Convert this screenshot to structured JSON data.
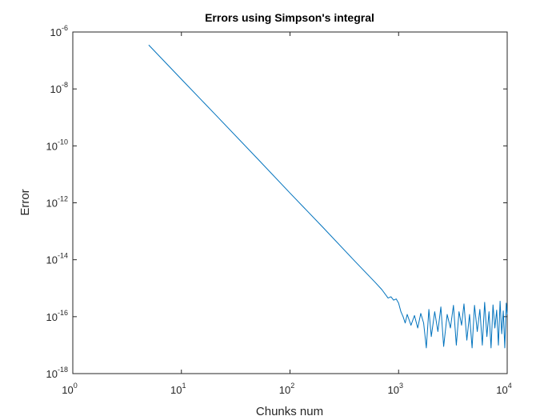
{
  "chart_data": {
    "type": "line",
    "title": "Errors using Simpson's integral",
    "xlabel": "Chunks num",
    "ylabel": "Error",
    "xscale": "log",
    "yscale": "log",
    "xlim": [
      1,
      10000
    ],
    "ylim": [
      1e-18,
      1e-06
    ],
    "grid": false,
    "x_ticks": [
      {
        "base": "10",
        "exp": "0"
      },
      {
        "base": "10",
        "exp": "1"
      },
      {
        "base": "10",
        "exp": "2"
      },
      {
        "base": "10",
        "exp": "3"
      },
      {
        "base": "10",
        "exp": "4"
      }
    ],
    "y_ticks": [
      {
        "base": "10",
        "exp": "-18"
      },
      {
        "base": "10",
        "exp": "-16"
      },
      {
        "base": "10",
        "exp": "-14"
      },
      {
        "base": "10",
        "exp": "-12"
      },
      {
        "base": "10",
        "exp": "-10"
      },
      {
        "base": "10",
        "exp": "-8"
      },
      {
        "base": "10",
        "exp": "-6"
      }
    ],
    "series": [
      {
        "color": "#0072BD",
        "x": [
          5,
          10,
          20,
          50,
          100,
          200,
          400,
          600,
          700,
          800,
          850,
          900,
          950,
          1000,
          1050,
          1100,
          1150,
          1200,
          1300,
          1400,
          1500,
          1600,
          1700,
          1800,
          1900,
          2000,
          2150,
          2300,
          2450,
          2600,
          2800,
          3000,
          3200,
          3400,
          3600,
          3800,
          4000,
          4250,
          4500,
          4750,
          5000,
          5300,
          5600,
          5900,
          6200,
          6500,
          6800,
          7100,
          7400,
          7700,
          8000,
          8300,
          8600,
          8900,
          9200,
          9500,
          9800,
          10000
        ],
        "y": [
          3.5e-07,
          2.2e-08,
          1.4e-09,
          3.6e-11,
          2.2e-12,
          1.4e-13,
          8.5e-15,
          1.7e-15,
          9e-16,
          4.5e-16,
          5e-16,
          3.8e-16,
          4.2e-16,
          3e-16,
          1.5e-16,
          1e-16,
          6e-17,
          1.2e-16,
          5e-17,
          1.1e-16,
          4e-17,
          1.3e-16,
          6e-17,
          8e-18,
          1.8e-16,
          2e-17,
          1.5e-16,
          3e-17,
          2.2e-16,
          9e-18,
          1.2e-16,
          4e-17,
          2.5e-16,
          1e-17,
          1.5e-16,
          5e-17,
          2.8e-16,
          1.5e-17,
          1.2e-16,
          8e-18,
          2.5e-16,
          3e-17,
          1.8e-16,
          1e-17,
          3.2e-16,
          2e-17,
          1.5e-16,
          8e-18,
          2.6e-16,
          4e-17,
          1.7e-16,
          1e-17,
          3.5e-16,
          2.5e-17,
          1.6e-16,
          8e-18,
          3e-16,
          1.2e-16
        ]
      }
    ]
  }
}
